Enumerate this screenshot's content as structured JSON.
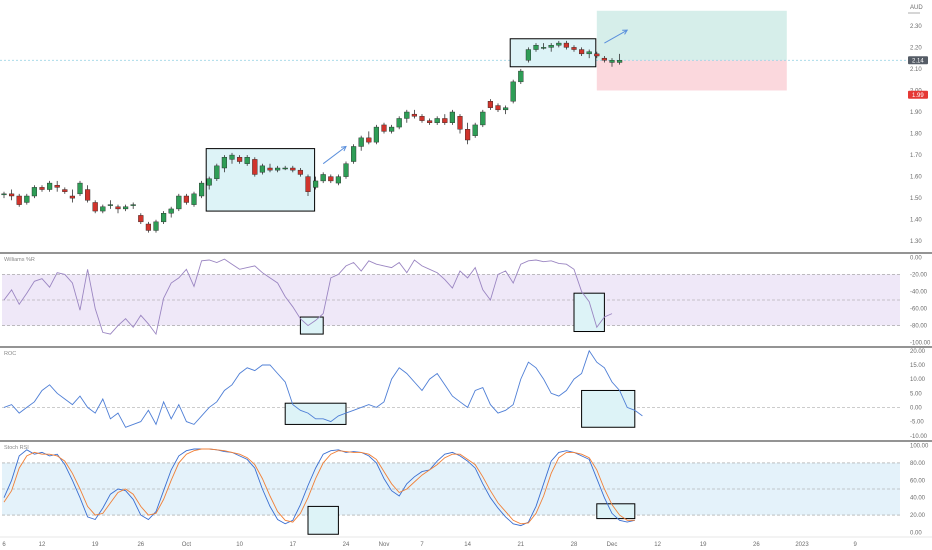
{
  "colors": {
    "background": "#ffffff",
    "up": "#26a69a",
    "up_fill": "#2e9d56",
    "down": "#d0342c",
    "wick": "#333333",
    "pane_border": "#2a2a2a",
    "axis_text": "#6b6b6b",
    "highlight_box": "#ddf3f7",
    "highlight_border": "#000000",
    "williams_band": "#efe8f8",
    "williams_line": "#9b86c2",
    "roc_line": "#4f7fd6",
    "stoch_band": "#e4f2fa",
    "stoch_k": "#3b6fd1",
    "stoch_d": "#f08038",
    "target_zone": "#d6eeea",
    "stop_zone": "#fbd8dd",
    "price_badge": "#555c66",
    "stop_badge": "#e53935",
    "arrow": "#5a8fdc",
    "dashed_guide": "#9a9a9a"
  },
  "chart_data": [
    {
      "type": "candlestick",
      "pane": "price",
      "title": "",
      "currency_label": "AUD",
      "y_ticks": [
        "2.30",
        "2.20",
        "2.10",
        "2.00",
        "1.90",
        "1.80",
        "1.70",
        "1.60",
        "1.50",
        "1.40",
        "1.30"
      ],
      "ylim": [
        1.25,
        2.42
      ],
      "current_price_label": "2.14",
      "stop_label": "1.99",
      "target_zone": {
        "from_index": 78,
        "to_index": 103,
        "top": 2.37,
        "bottom": 2.14
      },
      "stop_zone": {
        "from_index": 78,
        "to_index": 103,
        "top": 2.14,
        "bottom": 2.0
      },
      "highlight_boxes": [
        {
          "from_index": 27,
          "to_index": 41,
          "top": 1.73,
          "bottom": 1.44
        },
        {
          "from_index": 67,
          "to_index": 78,
          "top": 2.24,
          "bottom": 2.11
        }
      ],
      "arrows": [
        {
          "from_index": 42,
          "from_value": 1.66,
          "to_index": 45,
          "to_value": 1.74
        },
        {
          "from_index": 79,
          "from_value": 2.22,
          "to_index": 82,
          "to_value": 2.28
        }
      ],
      "ohlc": [
        [
          1.52,
          1.53,
          1.5,
          1.52
        ],
        [
          1.52,
          1.54,
          1.49,
          1.51
        ],
        [
          1.51,
          1.52,
          1.46,
          1.47
        ],
        [
          1.48,
          1.52,
          1.47,
          1.51
        ],
        [
          1.51,
          1.56,
          1.5,
          1.55
        ],
        [
          1.55,
          1.56,
          1.53,
          1.54
        ],
        [
          1.54,
          1.58,
          1.53,
          1.57
        ],
        [
          1.56,
          1.58,
          1.53,
          1.55
        ],
        [
          1.54,
          1.55,
          1.52,
          1.53
        ],
        [
          1.51,
          1.54,
          1.48,
          1.5
        ],
        [
          1.52,
          1.58,
          1.51,
          1.57
        ],
        [
          1.54,
          1.56,
          1.48,
          1.49
        ],
        [
          1.48,
          1.49,
          1.43,
          1.44
        ],
        [
          1.44,
          1.47,
          1.43,
          1.46
        ],
        [
          1.47,
          1.49,
          1.45,
          1.47
        ],
        [
          1.46,
          1.47,
          1.43,
          1.45
        ],
        [
          1.45,
          1.47,
          1.44,
          1.46
        ],
        [
          1.47,
          1.48,
          1.45,
          1.47
        ],
        [
          1.42,
          1.43,
          1.38,
          1.39
        ],
        [
          1.38,
          1.39,
          1.34,
          1.35
        ],
        [
          1.35,
          1.4,
          1.34,
          1.39
        ],
        [
          1.39,
          1.44,
          1.38,
          1.43
        ],
        [
          1.43,
          1.46,
          1.41,
          1.45
        ],
        [
          1.45,
          1.52,
          1.44,
          1.51
        ],
        [
          1.51,
          1.52,
          1.47,
          1.48
        ],
        [
          1.47,
          1.53,
          1.46,
          1.52
        ],
        [
          1.51,
          1.58,
          1.5,
          1.57
        ],
        [
          1.56,
          1.6,
          1.54,
          1.59
        ],
        [
          1.59,
          1.66,
          1.58,
          1.65
        ],
        [
          1.64,
          1.7,
          1.62,
          1.69
        ],
        [
          1.68,
          1.71,
          1.66,
          1.7
        ],
        [
          1.69,
          1.7,
          1.66,
          1.67
        ],
        [
          1.66,
          1.7,
          1.65,
          1.69
        ],
        [
          1.68,
          1.69,
          1.6,
          1.61
        ],
        [
          1.62,
          1.66,
          1.61,
          1.65
        ],
        [
          1.64,
          1.66,
          1.62,
          1.63
        ],
        [
          1.63,
          1.65,
          1.62,
          1.64
        ],
        [
          1.64,
          1.65,
          1.63,
          1.64
        ],
        [
          1.64,
          1.65,
          1.62,
          1.63
        ],
        [
          1.63,
          1.64,
          1.6,
          1.61
        ],
        [
          1.6,
          1.61,
          1.51,
          1.53
        ],
        [
          1.55,
          1.6,
          1.54,
          1.58
        ],
        [
          1.58,
          1.62,
          1.57,
          1.61
        ],
        [
          1.6,
          1.61,
          1.57,
          1.58
        ],
        [
          1.57,
          1.61,
          1.56,
          1.6
        ],
        [
          1.6,
          1.67,
          1.59,
          1.66
        ],
        [
          1.67,
          1.75,
          1.66,
          1.74
        ],
        [
          1.74,
          1.79,
          1.72,
          1.78
        ],
        [
          1.78,
          1.81,
          1.75,
          1.76
        ],
        [
          1.76,
          1.84,
          1.75,
          1.83
        ],
        [
          1.84,
          1.85,
          1.8,
          1.81
        ],
        [
          1.81,
          1.84,
          1.8,
          1.83
        ],
        [
          1.83,
          1.88,
          1.82,
          1.87
        ],
        [
          1.87,
          1.91,
          1.85,
          1.9
        ],
        [
          1.89,
          1.91,
          1.87,
          1.88
        ],
        [
          1.88,
          1.89,
          1.85,
          1.86
        ],
        [
          1.86,
          1.87,
          1.84,
          1.85
        ],
        [
          1.85,
          1.88,
          1.84,
          1.87
        ],
        [
          1.87,
          1.89,
          1.84,
          1.85
        ],
        [
          1.85,
          1.91,
          1.84,
          1.9
        ],
        [
          1.88,
          1.89,
          1.8,
          1.82
        ],
        [
          1.82,
          1.85,
          1.75,
          1.77
        ],
        [
          1.79,
          1.85,
          1.78,
          1.84
        ],
        [
          1.84,
          1.91,
          1.83,
          1.9
        ],
        [
          1.95,
          1.96,
          1.91,
          1.92
        ],
        [
          1.93,
          1.94,
          1.9,
          1.91
        ],
        [
          1.91,
          1.93,
          1.89,
          1.92
        ],
        [
          1.95,
          2.05,
          1.94,
          2.04
        ],
        [
          2.04,
          2.1,
          2.03,
          2.09
        ],
        [
          2.14,
          2.2,
          2.13,
          2.19
        ],
        [
          2.19,
          2.22,
          2.18,
          2.21
        ],
        [
          2.2,
          2.22,
          2.19,
          2.2
        ],
        [
          2.2,
          2.22,
          2.18,
          2.21
        ],
        [
          2.21,
          2.23,
          2.2,
          2.22
        ],
        [
          2.22,
          2.23,
          2.19,
          2.2
        ],
        [
          2.2,
          2.21,
          2.18,
          2.19
        ],
        [
          2.19,
          2.2,
          2.16,
          2.17
        ],
        [
          2.17,
          2.19,
          2.15,
          2.18
        ],
        [
          2.17,
          2.18,
          2.15,
          2.16
        ],
        [
          2.15,
          2.16,
          2.13,
          2.14
        ],
        [
          2.13,
          2.15,
          2.11,
          2.14
        ],
        [
          2.13,
          2.17,
          2.12,
          2.14
        ]
      ],
      "total_slots": 103
    },
    {
      "type": "line",
      "pane": "indicator",
      "title": "Williams %R",
      "y_ticks": [
        "0.00",
        "-20.00",
        "-40.00",
        "-60.00",
        "-80.00",
        "-100.00"
      ],
      "ylim": [
        -104,
        4
      ],
      "band": [
        -20,
        -80
      ],
      "mid_line": -50,
      "highlight_boxes": [
        {
          "from_index": 39,
          "to_index": 42,
          "top": -70,
          "bottom": -90
        },
        {
          "from_index": 75,
          "to_index": 79,
          "top": -42,
          "bottom": -87
        }
      ],
      "values": [
        -50,
        -38,
        -55,
        -42,
        -28,
        -25,
        -35,
        -18,
        -20,
        -30,
        -62,
        -14,
        -60,
        -88,
        -90,
        -80,
        -72,
        -82,
        -68,
        -78,
        -90,
        -48,
        -30,
        -24,
        -14,
        -34,
        -4,
        -3,
        -6,
        -2,
        -8,
        -14,
        -12,
        -10,
        -18,
        -24,
        -30,
        -46,
        -58,
        -72,
        -80,
        -74,
        -66,
        -24,
        -20,
        -10,
        -6,
        -16,
        -4,
        -8,
        -10,
        -12,
        -6,
        -18,
        -3,
        -10,
        -14,
        -18,
        -26,
        -36,
        -16,
        -24,
        -12,
        -38,
        -50,
        -20,
        -16,
        -30,
        -8,
        -4,
        -3,
        -5,
        -4,
        -7,
        -8,
        -14,
        -40,
        -52,
        -82,
        -70,
        -66
      ]
    },
    {
      "type": "line",
      "pane": "indicator",
      "title": "ROC",
      "y_ticks": [
        "20.00",
        "15.00",
        "10.00",
        "5.00",
        "0.00",
        "-5.00",
        "-10.00"
      ],
      "ylim": [
        -11.5,
        21
      ],
      "mid_line": 0,
      "highlight_boxes": [
        {
          "from_index": 37,
          "to_index": 45,
          "top": 1.5,
          "bottom": -6
        },
        {
          "from_index": 76,
          "to_index": 83,
          "top": 6,
          "bottom": -7
        }
      ],
      "values": [
        0,
        1,
        -2,
        0,
        2,
        6,
        8,
        5,
        3,
        1,
        4,
        0,
        -2,
        3,
        -4,
        -2,
        -7,
        -6,
        -5,
        -1,
        -6,
        2,
        -4,
        1,
        -5,
        -6,
        -3,
        0,
        2,
        6,
        8,
        12,
        14,
        13,
        15,
        15,
        12,
        9,
        1,
        -1,
        -2,
        -4,
        -4,
        -5,
        -3,
        -2,
        -1,
        0,
        1,
        0,
        2,
        10,
        14,
        12,
        9,
        6,
        10,
        12,
        8,
        4,
        2,
        0,
        6,
        7,
        1,
        -2,
        -1,
        1,
        10,
        16,
        14,
        10,
        5,
        4,
        6,
        10,
        12,
        20,
        16,
        14,
        9,
        6,
        0,
        -1,
        -3
      ]
    },
    {
      "type": "line",
      "pane": "indicator",
      "title": "Stoch RSI",
      "y_ticks": [
        "100.00",
        "80.00",
        "60.00",
        "40.00",
        "20.00",
        "0.00"
      ],
      "ylim": [
        -4,
        104
      ],
      "band": [
        80,
        20
      ],
      "mid_line": 50,
      "highlight_boxes": [
        {
          "from_index": 40,
          "to_index": 44,
          "top": 30,
          "bottom": -2
        },
        {
          "from_index": 78,
          "to_index": 83,
          "top": 33,
          "bottom": 16
        }
      ],
      "series": [
        {
          "key": "k",
          "values": [
            40,
            60,
            88,
            95,
            90,
            92,
            88,
            90,
            78,
            60,
            40,
            18,
            15,
            28,
            44,
            50,
            48,
            38,
            20,
            15,
            24,
            48,
            72,
            88,
            94,
            96,
            96,
            96,
            95,
            93,
            92,
            88,
            84,
            74,
            50,
            30,
            15,
            10,
            14,
            32,
            54,
            74,
            90,
            94,
            95,
            92,
            93,
            92,
            88,
            80,
            62,
            48,
            42,
            56,
            64,
            70,
            72,
            82,
            90,
            92,
            88,
            82,
            74,
            56,
            40,
            28,
            18,
            10,
            8,
            12,
            30,
            56,
            82,
            92,
            94,
            92,
            88,
            84,
            62,
            40,
            22,
            14,
            12,
            14
          ]
        },
        {
          "key": "d",
          "values": [
            35,
            48,
            74,
            88,
            92,
            90,
            90,
            88,
            82,
            68,
            50,
            30,
            20,
            22,
            34,
            46,
            50,
            44,
            30,
            20,
            22,
            38,
            60,
            80,
            90,
            94,
            96,
            96,
            95,
            94,
            92,
            90,
            86,
            78,
            62,
            42,
            24,
            14,
            12,
            22,
            40,
            62,
            80,
            90,
            94,
            93,
            92,
            92,
            90,
            84,
            70,
            56,
            46,
            50,
            58,
            66,
            72,
            78,
            86,
            90,
            90,
            84,
            78,
            64,
            48,
            34,
            24,
            14,
            10,
            11,
            22,
            42,
            68,
            86,
            92,
            92,
            90,
            86,
            72,
            50,
            32,
            20,
            14,
            14
          ]
        }
      ]
    }
  ],
  "x_axis": {
    "labels": [
      {
        "index": 0,
        "text": "6"
      },
      {
        "index": 5,
        "text": "12"
      },
      {
        "index": 12,
        "text": "19"
      },
      {
        "index": 18,
        "text": "26"
      },
      {
        "index": 24,
        "text": "Oct"
      },
      {
        "index": 31,
        "text": "10"
      },
      {
        "index": 38,
        "text": "17"
      },
      {
        "index": 45,
        "text": "24"
      },
      {
        "index": 50,
        "text": "Nov"
      },
      {
        "index": 55,
        "text": "7"
      },
      {
        "index": 61,
        "text": "14"
      },
      {
        "index": 68,
        "text": "21"
      },
      {
        "index": 75,
        "text": "28"
      },
      {
        "index": 80,
        "text": "Dec"
      },
      {
        "index": 86,
        "text": "12"
      },
      {
        "index": 92,
        "text": "19"
      },
      {
        "index": 99,
        "text": "26"
      },
      {
        "index": 105,
        "text": "2023"
      },
      {
        "index": 112,
        "text": "9"
      }
    ],
    "label_positions_note": ""
  }
}
